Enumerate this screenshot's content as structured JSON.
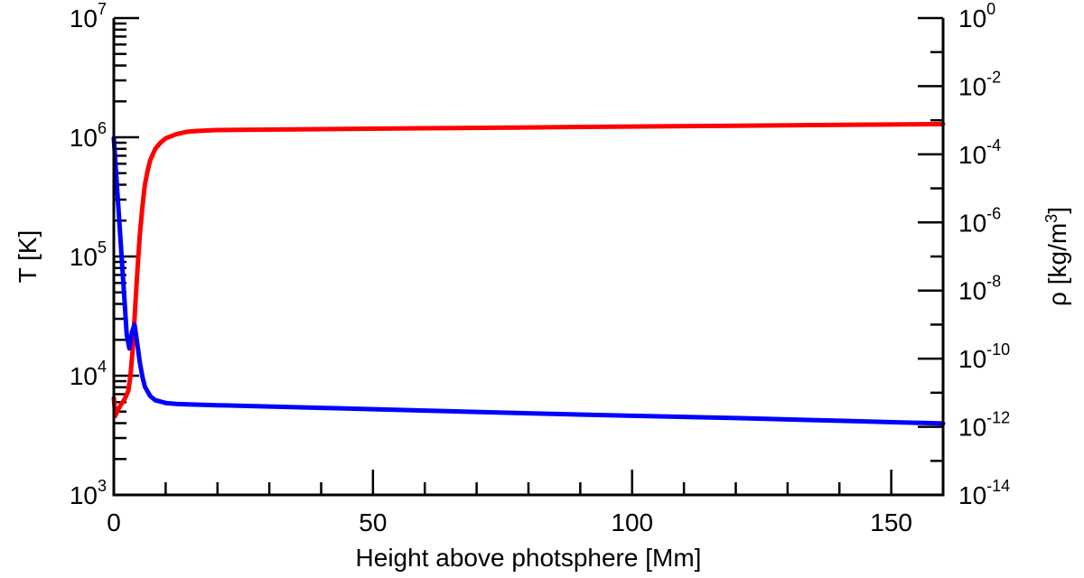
{
  "chart_data": {
    "type": "line",
    "xlabel": "Height above photsphere [Mm]",
    "ylabel_left": "T [K]",
    "ylabel_right_main": "ρ [kg/m",
    "ylabel_right_sup": "3",
    "ylabel_right_close": "]",
    "xlim": [
      0,
      160
    ],
    "ylim_left": [
      1000,
      10000000
    ],
    "ylim_right": [
      1e-14,
      1
    ],
    "y_left_scale": "log",
    "y_right_scale": "log",
    "x_ticks": [
      0,
      50,
      100,
      150
    ],
    "x_tick_labels": [
      "0",
      "50",
      "100",
      "150"
    ],
    "y_left_tick_labels": [
      {
        "base": "10",
        "exp": "3"
      },
      {
        "base": "10",
        "exp": "4"
      },
      {
        "base": "10",
        "exp": "5"
      },
      {
        "base": "10",
        "exp": "6"
      },
      {
        "base": "10",
        "exp": "7"
      }
    ],
    "y_right_tick_labels": [
      {
        "base": "10",
        "exp": "-14"
      },
      {
        "base": "10",
        "exp": "-12"
      },
      {
        "base": "10",
        "exp": "-10"
      },
      {
        "base": "10",
        "exp": "-8"
      },
      {
        "base": "10",
        "exp": "-6"
      },
      {
        "base": "10",
        "exp": "-4"
      },
      {
        "base": "10",
        "exp": "-2"
      },
      {
        "base": "10",
        "exp": "0"
      }
    ],
    "grid": false,
    "series": [
      {
        "axis": "left",
        "color": "#ff0000",
        "points": [
          [
            0,
            6500
          ],
          [
            0.3,
            4600
          ],
          [
            0.8,
            5200
          ],
          [
            1.5,
            5800
          ],
          [
            2.2,
            6500
          ],
          [
            2.8,
            7500
          ],
          [
            3.2,
            10000
          ],
          [
            3.6,
            16000
          ],
          [
            4.0,
            30000
          ],
          [
            4.5,
            70000
          ],
          [
            5.0,
            150000
          ],
          [
            5.5,
            260000
          ],
          [
            6.0,
            400000
          ],
          [
            6.5,
            520000
          ],
          [
            7.0,
            640000
          ],
          [
            8.0,
            800000
          ],
          [
            9.0,
            900000
          ],
          [
            10.0,
            980000
          ],
          [
            12.0,
            1060000
          ],
          [
            14.0,
            1110000
          ],
          [
            16.0,
            1130000
          ],
          [
            18.0,
            1140000
          ],
          [
            20.0,
            1150000
          ],
          [
            40.0,
            1170000
          ],
          [
            60.0,
            1190000
          ],
          [
            80.0,
            1210000
          ],
          [
            100.0,
            1230000
          ],
          [
            120.0,
            1250000
          ],
          [
            140.0,
            1270000
          ],
          [
            160.0,
            1290000
          ]
        ]
      },
      {
        "axis": "right",
        "color": "#0000ff",
        "points": [
          [
            0,
            0.0003
          ],
          [
            0.5,
            2e-05
          ],
          [
            1.0,
            1.5e-06
          ],
          [
            1.5,
            1e-07
          ],
          [
            2.0,
            7e-09
          ],
          [
            2.5,
            5e-10
          ],
          [
            3.0,
            2e-10
          ],
          [
            3.5,
            6e-10
          ],
          [
            4.0,
            1e-09
          ],
          [
            4.5,
            3e-10
          ],
          [
            5.0,
            8e-11
          ],
          [
            5.5,
            3e-11
          ],
          [
            6.0,
            1.5e-11
          ],
          [
            7.0,
            8e-12
          ],
          [
            8.0,
            6e-12
          ],
          [
            9.0,
            5.5e-12
          ],
          [
            10.0,
            5e-12
          ],
          [
            12.0,
            4.7e-12
          ],
          [
            15.0,
            4.5e-12
          ],
          [
            20.0,
            4.3e-12
          ],
          [
            40.0,
            3.6e-12
          ],
          [
            60.0,
            3e-12
          ],
          [
            80.0,
            2.5e-12
          ],
          [
            100.0,
            2.1e-12
          ],
          [
            120.0,
            1.8e-12
          ],
          [
            140.0,
            1.5e-12
          ],
          [
            160.0,
            1.25e-12
          ]
        ]
      }
    ]
  }
}
